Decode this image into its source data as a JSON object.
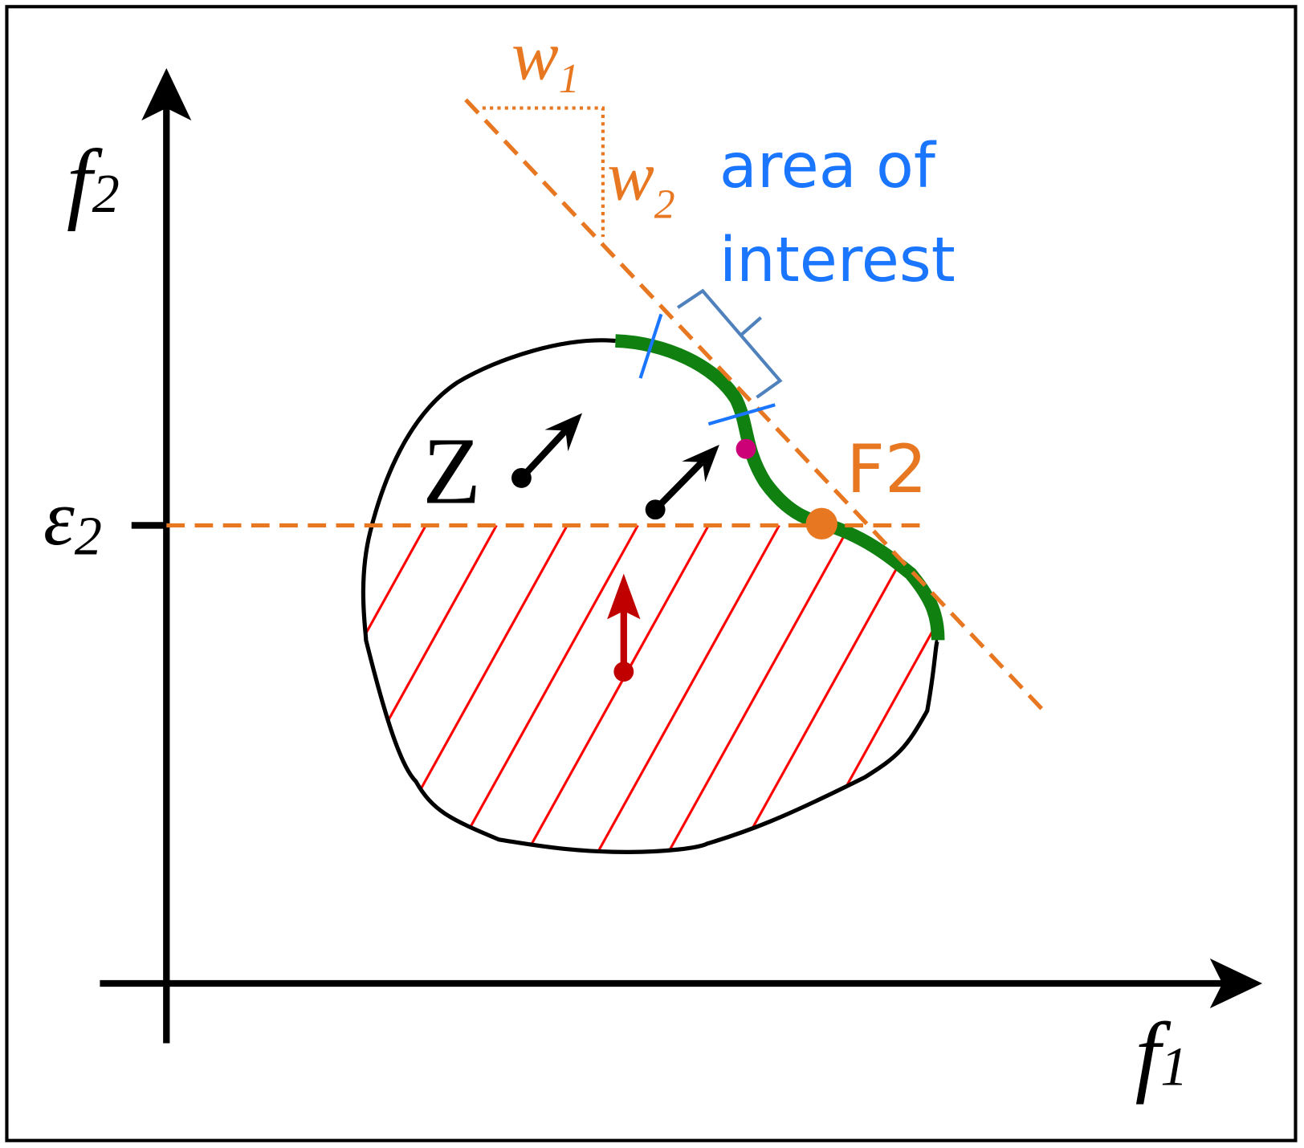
{
  "axes": {
    "y_label": {
      "base": "f",
      "sub": "2"
    },
    "x_label": {
      "base": "f",
      "sub": "1"
    },
    "epsilon": {
      "base": "ε",
      "sub": "2"
    }
  },
  "weights": {
    "w1": {
      "base": "w",
      "sub": "1"
    },
    "w2": {
      "base": "w",
      "sub": "2"
    }
  },
  "annotations": {
    "area_of_interest": [
      "area of",
      "interest"
    ],
    "point": "F2",
    "region": "Z"
  }
}
